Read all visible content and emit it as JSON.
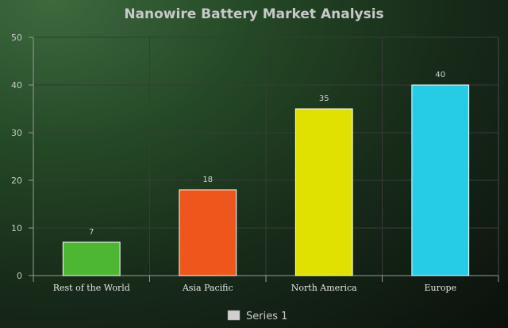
{
  "chart_data": {
    "type": "bar",
    "title": "Nanowire Battery Market Analysis",
    "categories": [
      "Rest of the World",
      "Asia Pacific",
      "North America",
      "Europe"
    ],
    "series": [
      {
        "name": "Series 1",
        "values": [
          7,
          18,
          35,
          40
        ]
      }
    ],
    "bar_colors": [
      "#4db733",
      "#ee561b",
      "#e1e100",
      "#25cce6"
    ],
    "legend_color": "#d0d0d0",
    "ylim": [
      0,
      50
    ],
    "yticks": [
      0,
      10,
      20,
      30,
      40,
      50
    ],
    "grid": true,
    "legend_position": "bottom"
  }
}
